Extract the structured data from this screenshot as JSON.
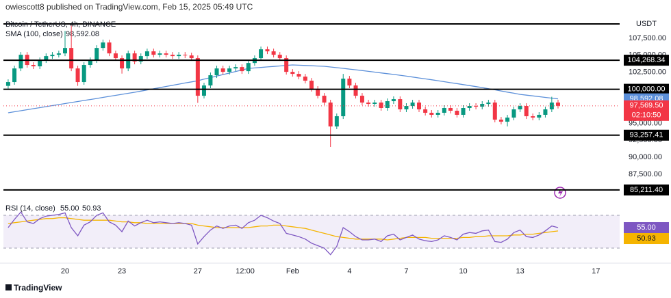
{
  "header": {
    "published": "owiescott8 published on TradingView.com, Feb 15, 2025 05:49 UTC"
  },
  "footer": {
    "brand": "TradingView"
  },
  "chart_data": {
    "type": "candlestick",
    "title": "Bitcoin / TetherUS, 4h, BINANCE",
    "currency": "USDT",
    "up_color": "#089981",
    "down_color": "#f23645",
    "xlim": [
      16.75,
      49.25
    ],
    "ylim": [
      84000,
      110100
    ],
    "xticks": [
      20,
      23,
      27,
      {
        "value": 29.5,
        "label": "12:00"
      },
      {
        "value": 32,
        "label": "Feb"
      },
      {
        "value": 35,
        "label": "4"
      },
      {
        "value": 38,
        "label": "7"
      },
      {
        "value": 41,
        "label": "10"
      },
      {
        "value": 44,
        "label": "13"
      },
      {
        "value": 48,
        "label": "17"
      }
    ],
    "yticks": [
      {
        "value": 107500,
        "label": "107,500.00"
      },
      {
        "value": 105000,
        "label": "105,000.00"
      },
      {
        "value": 102500,
        "label": "102,500.00"
      },
      {
        "value": 100000,
        "label": "100,000.00"
      },
      {
        "value": 97500,
        "label": "97,500.00"
      },
      {
        "value": 95000,
        "label": "95,000.00"
      },
      {
        "value": 92500,
        "label": "92,500.00"
      },
      {
        "value": 90000,
        "label": "90,000.00"
      },
      {
        "value": 87500,
        "label": "87,500.00"
      },
      {
        "value": 85000,
        "label": "85,000.00"
      }
    ],
    "levels": [
      {
        "value": 104268.34,
        "label": "104,268.34"
      },
      {
        "value": 100000,
        "label": "100,000.00"
      },
      {
        "value": 93257.41,
        "label": "93,257.41"
      },
      {
        "value": 85211.4,
        "label": "85,211.40"
      }
    ],
    "x": [
      17,
      17.33,
      17.67,
      18,
      18.33,
      18.67,
      19,
      19.33,
      19.67,
      20,
      20.33,
      20.67,
      21,
      21.33,
      21.67,
      22,
      22.33,
      22.67,
      23,
      23.33,
      23.67,
      24,
      24.33,
      24.67,
      25,
      25.33,
      25.67,
      26,
      26.33,
      26.67,
      27,
      27.33,
      27.67,
      28,
      28.33,
      28.67,
      29,
      29.33,
      29.67,
      30,
      30.33,
      30.67,
      31,
      31.33,
      31.67,
      32,
      32.33,
      32.67,
      33,
      33.33,
      33.67,
      34,
      34.33,
      34.67,
      35,
      35.33,
      35.67,
      36,
      36.33,
      36.67,
      37,
      37.33,
      37.67,
      38,
      38.33,
      38.67,
      39,
      39.33,
      39.67,
      40,
      40.33,
      40.67,
      41,
      41.33,
      41.67,
      42,
      42.33,
      42.67,
      43,
      43.33,
      43.67,
      44,
      44.33,
      44.67,
      45,
      45.33,
      45.67,
      46
    ],
    "open": [
      100500,
      101060,
      103060,
      105070,
      103570,
      103370,
      104270,
      104870,
      105070,
      105270,
      106070,
      103060,
      101060,
      103570,
      104270,
      106070,
      106870,
      105270,
      104570,
      103060,
      105270,
      104070,
      104870,
      105570,
      105070,
      105270,
      105070,
      104870,
      105070,
      104970,
      104570,
      99050,
      100560,
      102060,
      103060,
      102560,
      103060,
      103260,
      102660,
      103860,
      104570,
      105870,
      105570,
      105070,
      104570,
      102560,
      102260,
      101860,
      101260,
      100060,
      99050,
      98050,
      94540,
      96040,
      101560,
      100560,
      99050,
      98050,
      97850,
      98050,
      97250,
      98250,
      98550,
      97050,
      97550,
      98050,
      97050,
      96550,
      96250,
      96550,
      97250,
      96850,
      96250,
      97250,
      97550,
      97450,
      97850,
      98050,
      95540,
      95240,
      95840,
      97050,
      97550,
      96040,
      95840,
      96250,
      97050,
      98050
    ],
    "high": [
      101460,
      103460,
      105470,
      105470,
      103970,
      104670,
      105270,
      105470,
      105670,
      108580,
      109350,
      103460,
      103970,
      104670,
      106470,
      107300,
      107270,
      105670,
      104970,
      105670,
      105670,
      105270,
      105970,
      105970,
      105670,
      105670,
      105470,
      105470,
      105470,
      105370,
      104970,
      100960,
      102460,
      103460,
      103460,
      103460,
      103660,
      103660,
      104260,
      104970,
      106270,
      106270,
      105970,
      105470,
      104970,
      102960,
      102660,
      102260,
      101660,
      100460,
      99450,
      98450,
      96440,
      102260,
      101960,
      100960,
      99450,
      98450,
      98450,
      98450,
      98650,
      98950,
      98950,
      97950,
      98450,
      98450,
      97450,
      96950,
      96950,
      97650,
      97650,
      97250,
      97650,
      97950,
      97950,
      98250,
      98450,
      98450,
      95940,
      96240,
      97450,
      97950,
      97950,
      96440,
      96650,
      97450,
      98900,
      98450
    ],
    "low": [
      100100,
      100660,
      102660,
      103170,
      102970,
      102970,
      103870,
      104470,
      104670,
      104870,
      102660,
      100500,
      100660,
      103170,
      103870,
      105670,
      104870,
      104170,
      102300,
      102660,
      103670,
      103670,
      104470,
      104670,
      104670,
      104670,
      104470,
      104470,
      104570,
      104170,
      98000,
      98650,
      100160,
      101660,
      102160,
      102160,
      102660,
      102260,
      102260,
      103460,
      104170,
      105170,
      104670,
      104170,
      102160,
      101860,
      101460,
      100860,
      99660,
      98650,
      97650,
      91530,
      94140,
      95640,
      100160,
      98650,
      97650,
      97450,
      97450,
      96850,
      96850,
      97850,
      96650,
      96650,
      97150,
      96650,
      96150,
      95850,
      95850,
      96150,
      96450,
      95850,
      95850,
      96850,
      97050,
      97050,
      97450,
      95140,
      94840,
      94540,
      95440,
      96650,
      95640,
      95440,
      95440,
      95850,
      96650,
      97170
    ],
    "close": [
      101060,
      103060,
      105070,
      103570,
      103370,
      104270,
      104870,
      105070,
      105270,
      106070,
      103060,
      101060,
      103570,
      104270,
      106070,
      106870,
      105270,
      104570,
      103060,
      105270,
      104070,
      104870,
      105570,
      105070,
      105270,
      105070,
      104870,
      105070,
      104970,
      104570,
      99050,
      100560,
      102060,
      103060,
      102560,
      103060,
      103260,
      102660,
      103860,
      104570,
      105870,
      105570,
      105070,
      104570,
      102560,
      102260,
      101860,
      101260,
      100060,
      99050,
      98050,
      94540,
      96040,
      101560,
      100560,
      99050,
      98050,
      97850,
      98050,
      97250,
      98250,
      98550,
      97050,
      97550,
      98050,
      97050,
      96550,
      96250,
      96550,
      97250,
      96850,
      96250,
      97250,
      97550,
      97450,
      97850,
      98050,
      95540,
      95240,
      95840,
      97050,
      97550,
      96040,
      95840,
      96250,
      97050,
      98050,
      97569.5
    ],
    "last_label": "97,569.50",
    "countdown": "02:10:50",
    "sma": {
      "name": "SMA (100, close)",
      "color": "#5b8fd9",
      "value_label": "98,592.08",
      "values": [
        96550,
        96700,
        96850,
        97000,
        97150,
        97300,
        97450,
        97600,
        97750,
        97900,
        98050,
        98200,
        98350,
        98500,
        98650,
        98810,
        98960,
        99110,
        99260,
        99410,
        99560,
        99730,
        99900,
        100070,
        100240,
        100410,
        100580,
        100750,
        100920,
        101090,
        101260,
        101485,
        101710,
        101935,
        102160,
        102385,
        102610,
        102835,
        103060,
        103130,
        103200,
        103280,
        103350,
        103420,
        103500,
        103570,
        103530,
        103490,
        103450,
        103410,
        103370,
        103270,
        103170,
        103070,
        102960,
        102860,
        102750,
        102630,
        102520,
        102400,
        102290,
        102180,
        102060,
        101930,
        101800,
        101660,
        101530,
        101400,
        101260,
        101120,
        100970,
        100830,
        100680,
        100540,
        100390,
        100250,
        100080,
        99920,
        99750,
        99580,
        99420,
        99250,
        99140,
        99030,
        98920,
        98810,
        98700,
        98592.08
      ]
    },
    "rsi": {
      "name": "RSI (14, close)",
      "color": "#7e57c2",
      "value_label": "55.00",
      "ylim": [
        20,
        86.7
      ],
      "band": [
        30,
        70
      ],
      "values": [
        55,
        65,
        74,
        62,
        60,
        66,
        69,
        70,
        71,
        73,
        55,
        45,
        58,
        62,
        70,
        73,
        62,
        58,
        50,
        63,
        57,
        61,
        64,
        61,
        62,
        61,
        60,
        61,
        60,
        58,
        35,
        44,
        52,
        57,
        54,
        57,
        58,
        54,
        61,
        64,
        70,
        67,
        63,
        60,
        48,
        46,
        44,
        41,
        36,
        33,
        30,
        22,
        32,
        55,
        50,
        44,
        40,
        40,
        41,
        38,
        45,
        47,
        40,
        43,
        46,
        41,
        39,
        38,
        40,
        45,
        43,
        40,
        47,
        49,
        48,
        51,
        52,
        38,
        37,
        41,
        49,
        52,
        44,
        43,
        46,
        51,
        57,
        55
      ],
      "ma": {
        "color": "#f5b400",
        "value_label": "50.93",
        "values": [
          60,
          61,
          62,
          63,
          64,
          65,
          66,
          66,
          67,
          67,
          66,
          65,
          64,
          64,
          64,
          64,
          64,
          63,
          62,
          62,
          61,
          61,
          60,
          60,
          60,
          60,
          60,
          60,
          60,
          60,
          58,
          57,
          56,
          55,
          55,
          55,
          55,
          55,
          55,
          56,
          57,
          57,
          58,
          58,
          57,
          56,
          55,
          54,
          52,
          50,
          48,
          46,
          44,
          43,
          42,
          41,
          41,
          41,
          41,
          41,
          40,
          41,
          42,
          43,
          43,
          43,
          43,
          42,
          42,
          42,
          42,
          42,
          43,
          43,
          44,
          44,
          45,
          45,
          45,
          45,
          46,
          46,
          47,
          47,
          48,
          49,
          50,
          50.93
        ]
      }
    }
  }
}
